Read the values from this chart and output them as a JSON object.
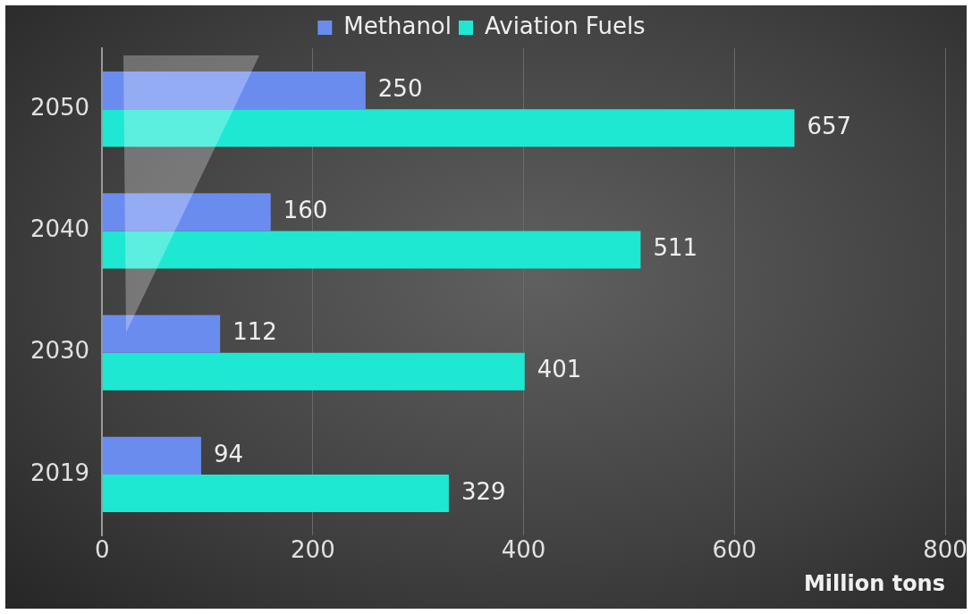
{
  "chart_data": {
    "type": "bar",
    "orientation": "horizontal",
    "xlabel": "Million tons",
    "categories": [
      "2050",
      "2040",
      "2030",
      "2019"
    ],
    "series": [
      {
        "name": "Methanol",
        "color": "#6b8cef",
        "values": [
          250,
          160,
          112,
          94
        ]
      },
      {
        "name": "Aviation Fuels",
        "color": "#1ee8d2",
        "values": [
          657,
          511,
          401,
          329
        ]
      }
    ],
    "xlim": [
      0,
      800
    ],
    "xticks": [
      0,
      200,
      400,
      600,
      800
    ],
    "grid": "x",
    "legend": "top",
    "data_labels": true
  }
}
